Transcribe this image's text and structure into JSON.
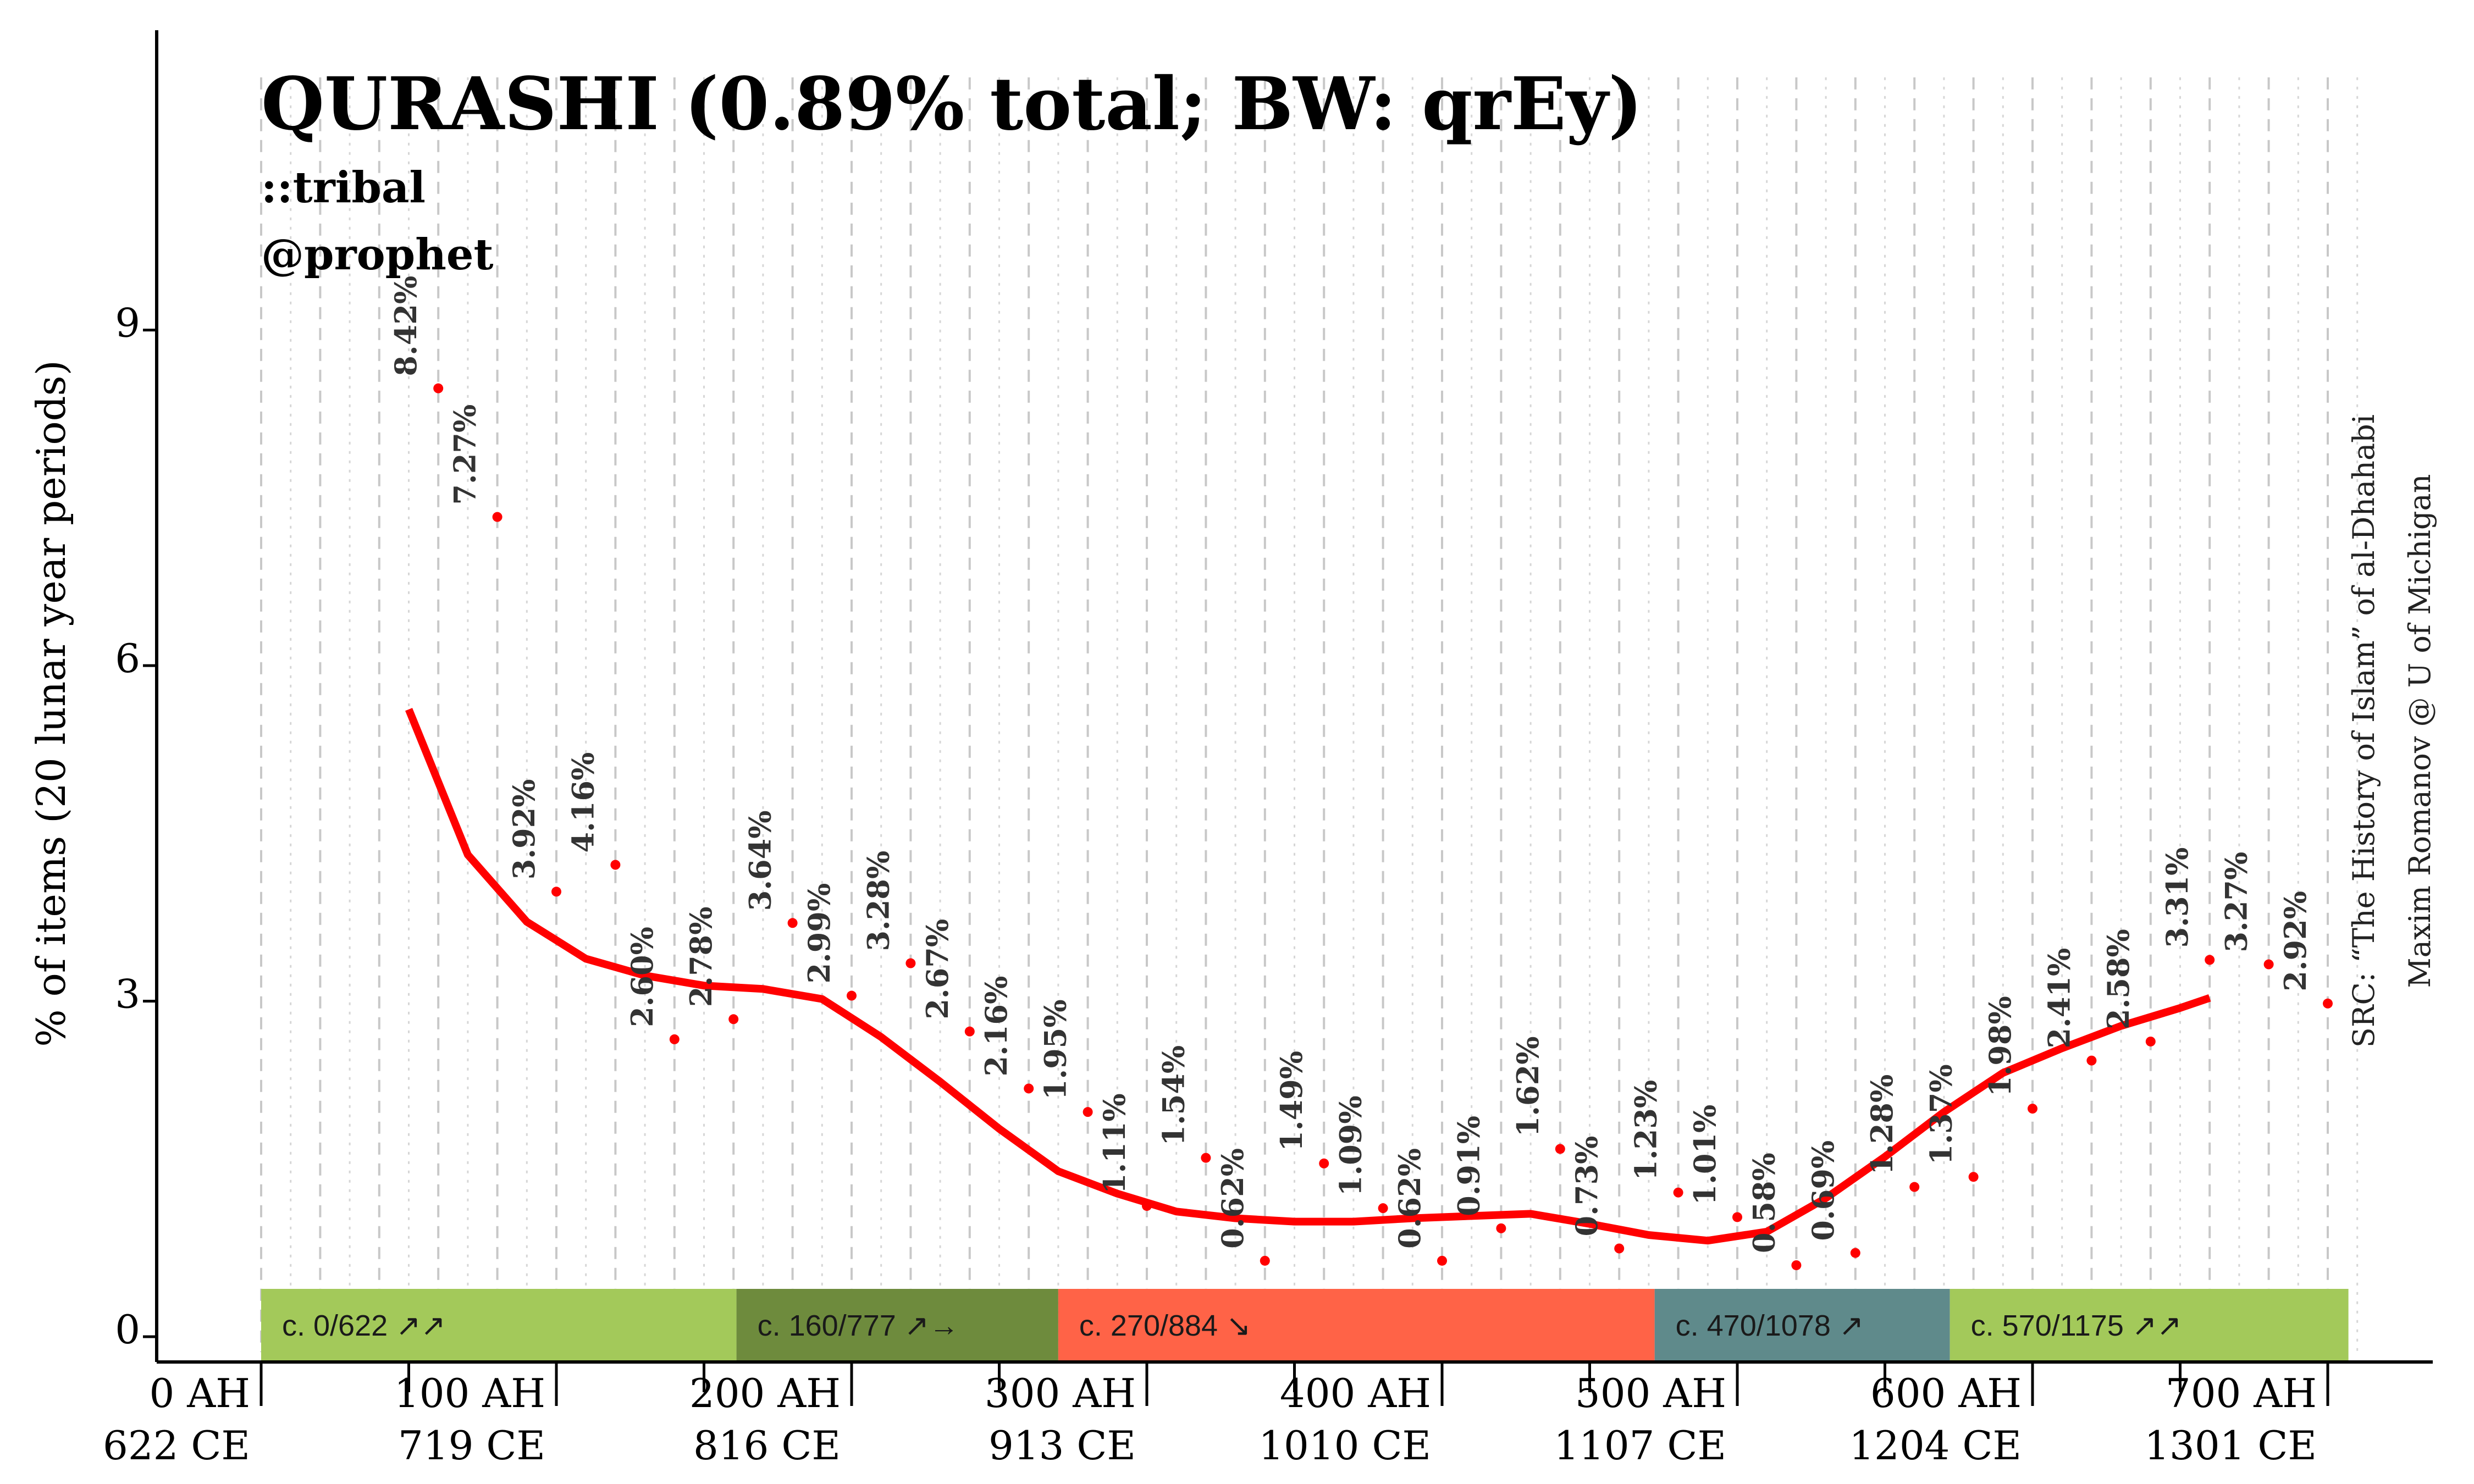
{
  "title": "QURASHI (0.89% total; BW: qrEy)",
  "subtitle_lines": [
    "::tribal",
    "@prophet"
  ],
  "source_lines": [
    "SRC: “The History of Islam” of al-Dhahabi",
    "Maxim Romanov @ U of Michigan"
  ],
  "colors": {
    "line": "#ff0000",
    "points": "#ff0000",
    "labels": "#333333"
  },
  "chart_data": {
    "type": "line",
    "ylabel": "% of items (20 lunar year periods)",
    "ylim": [
      0,
      11.2
    ],
    "xlim": [
      0,
      710
    ],
    "y_ticks": [
      0,
      3,
      6,
      9
    ],
    "x_ticks": [
      {
        "ah": 0,
        "label": [
          "0 AH",
          "622 CE"
        ]
      },
      {
        "ah": 100,
        "label": [
          "100 AH",
          "719 CE"
        ]
      },
      {
        "ah": 200,
        "label": [
          "200 AH",
          "816 CE"
        ]
      },
      {
        "ah": 300,
        "label": [
          "300 AH",
          "913 CE"
        ]
      },
      {
        "ah": 400,
        "label": [
          "400 AH",
          "1010 CE"
        ]
      },
      {
        "ah": 500,
        "label": [
          "500 AH",
          "1107 CE"
        ]
      },
      {
        "ah": 600,
        "label": [
          "600 AH",
          "1204 CE"
        ]
      },
      {
        "ah": 700,
        "label": [
          "700 AH",
          "1301 CE"
        ]
      }
    ],
    "grid_dashed_every": 20,
    "grid_dotted_offset": 10,
    "points": [
      {
        "x": 60,
        "y": 8.42,
        "label": "8.42%"
      },
      {
        "x": 80,
        "y": 7.27,
        "label": "7.27%"
      },
      {
        "x": 100,
        "y": 3.92,
        "label": "3.92%"
      },
      {
        "x": 120,
        "y": 4.16,
        "label": "4.16%"
      },
      {
        "x": 140,
        "y": 2.6,
        "label": "2.60%"
      },
      {
        "x": 160,
        "y": 2.78,
        "label": "2.78%"
      },
      {
        "x": 180,
        "y": 3.64,
        "label": "3.64%"
      },
      {
        "x": 200,
        "y": 2.99,
        "label": "2.99%"
      },
      {
        "x": 220,
        "y": 3.28,
        "label": "3.28%"
      },
      {
        "x": 240,
        "y": 2.67,
        "label": "2.67%"
      },
      {
        "x": 260,
        "y": 2.16,
        "label": "2.16%"
      },
      {
        "x": 280,
        "y": 1.95,
        "label": "1.95%"
      },
      {
        "x": 300,
        "y": 1.11,
        "label": "1.11%"
      },
      {
        "x": 320,
        "y": 1.54,
        "label": "1.54%"
      },
      {
        "x": 340,
        "y": 0.62,
        "label": "0.62%"
      },
      {
        "x": 360,
        "y": 1.49,
        "label": "1.49%"
      },
      {
        "x": 380,
        "y": 1.09,
        "label": "1.09%"
      },
      {
        "x": 400,
        "y": 0.62,
        "label": "0.62%"
      },
      {
        "x": 420,
        "y": 0.91,
        "label": "0.91%"
      },
      {
        "x": 440,
        "y": 1.62,
        "label": "1.62%"
      },
      {
        "x": 460,
        "y": 0.73,
        "label": "0.73%"
      },
      {
        "x": 480,
        "y": 1.23,
        "label": "1.23%"
      },
      {
        "x": 500,
        "y": 1.01,
        "label": "1.01%"
      },
      {
        "x": 520,
        "y": 0.58,
        "label": "0.58%"
      },
      {
        "x": 540,
        "y": 0.69,
        "label": "0.69%"
      },
      {
        "x": 560,
        "y": 1.28,
        "label": "1.28%"
      },
      {
        "x": 580,
        "y": 1.37,
        "label": "1.37%"
      },
      {
        "x": 600,
        "y": 1.98,
        "label": "1.98%"
      },
      {
        "x": 620,
        "y": 2.41,
        "label": "2.41%"
      },
      {
        "x": 640,
        "y": 2.58,
        "label": "2.58%"
      },
      {
        "x": 660,
        "y": 3.31,
        "label": "3.31%"
      },
      {
        "x": 680,
        "y": 3.27,
        "label": "3.27%"
      },
      {
        "x": 700,
        "y": 2.92,
        "label": "2.92%"
      }
    ],
    "smooth_line": [
      {
        "x": 50,
        "y": 5.55
      },
      {
        "x": 70,
        "y": 4.25
      },
      {
        "x": 90,
        "y": 3.65
      },
      {
        "x": 110,
        "y": 3.32
      },
      {
        "x": 130,
        "y": 3.17
      },
      {
        "x": 150,
        "y": 3.08
      },
      {
        "x": 170,
        "y": 3.05
      },
      {
        "x": 190,
        "y": 2.96
      },
      {
        "x": 210,
        "y": 2.62
      },
      {
        "x": 230,
        "y": 2.22
      },
      {
        "x": 250,
        "y": 1.8
      },
      {
        "x": 270,
        "y": 1.42
      },
      {
        "x": 290,
        "y": 1.22
      },
      {
        "x": 310,
        "y": 1.06
      },
      {
        "x": 330,
        "y": 1.0
      },
      {
        "x": 350,
        "y": 0.97
      },
      {
        "x": 370,
        "y": 0.97
      },
      {
        "x": 390,
        "y": 1.0
      },
      {
        "x": 410,
        "y": 1.02
      },
      {
        "x": 430,
        "y": 1.04
      },
      {
        "x": 450,
        "y": 0.95
      },
      {
        "x": 470,
        "y": 0.85
      },
      {
        "x": 490,
        "y": 0.8
      },
      {
        "x": 510,
        "y": 0.88
      },
      {
        "x": 530,
        "y": 1.18
      },
      {
        "x": 550,
        "y": 1.55
      },
      {
        "x": 570,
        "y": 1.95
      },
      {
        "x": 590,
        "y": 2.3
      },
      {
        "x": 610,
        "y": 2.52
      },
      {
        "x": 630,
        "y": 2.72
      },
      {
        "x": 650,
        "y": 2.88
      },
      {
        "x": 660,
        "y": 2.97
      }
    ],
    "periods": [
      {
        "label": "c. 0/622 ↗↗",
        "start": 0,
        "end": 161,
        "color": "#a3c95a"
      },
      {
        "label": "c. 160/777 ↗→",
        "start": 161,
        "end": 270,
        "color": "#6e8b3d"
      },
      {
        "label": "c. 270/884 ↘",
        "start": 270,
        "end": 472,
        "color": "#ff6347"
      },
      {
        "label": "c. 470/1078 ↗",
        "start": 472,
        "end": 572,
        "color": "#5f8a8b"
      },
      {
        "label": "c. 570/1175 ↗↗",
        "start": 572,
        "end": 707,
        "color": "#a3c95a"
      }
    ]
  }
}
